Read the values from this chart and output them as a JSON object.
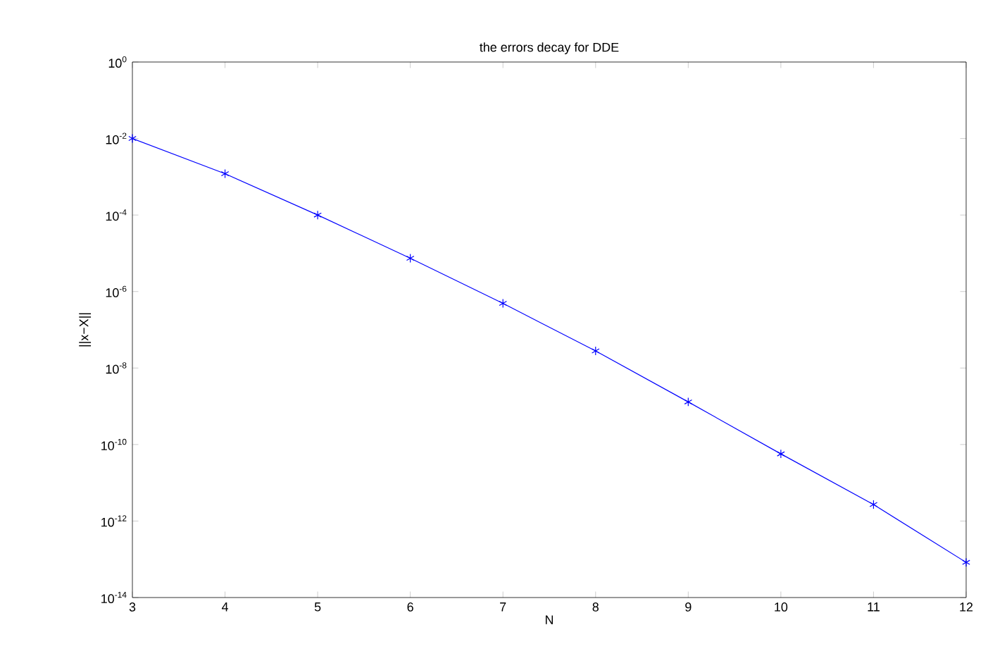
{
  "chart_data": {
    "type": "line",
    "title": "the errors decay for DDE",
    "xlabel": "N",
    "ylabel": "||x−X||",
    "x": [
      3,
      4,
      5,
      6,
      7,
      8,
      9,
      10,
      11,
      12
    ],
    "series": [
      {
        "color": "#0000ff",
        "values": [
          0.01,
          0.0012,
          0.0001,
          7.4e-06,
          4.9e-07,
          2.8e-08,
          1.3e-09,
          5.7e-11,
          2.7e-12,
          8.3e-14
        ]
      }
    ],
    "xlim": [
      3,
      12
    ],
    "xticks": [
      3,
      4,
      5,
      6,
      7,
      8,
      9,
      10,
      11,
      12
    ],
    "ylim": [
      1e-14,
      1
    ],
    "yticks": [
      {
        "value": 1e-14,
        "label": "10$^{-14}$"
      },
      {
        "value": 1e-12,
        "label": "10$^{-12}$"
      },
      {
        "value": 1e-10,
        "label": "10$^{-10}$"
      },
      {
        "value": 1e-08,
        "label": "10$^{-8}$"
      },
      {
        "value": 1e-06,
        "label": "10$^{-6}$"
      },
      {
        "value": 0.0001,
        "label": "10$^{-4}$"
      },
      {
        "value": 0.01,
        "label": "10$^{-2}$"
      },
      {
        "value": 1,
        "label": "10$^{0}$"
      }
    ],
    "log": "y",
    "grid": false,
    "marker": "cross",
    "line_style": "solid"
  }
}
